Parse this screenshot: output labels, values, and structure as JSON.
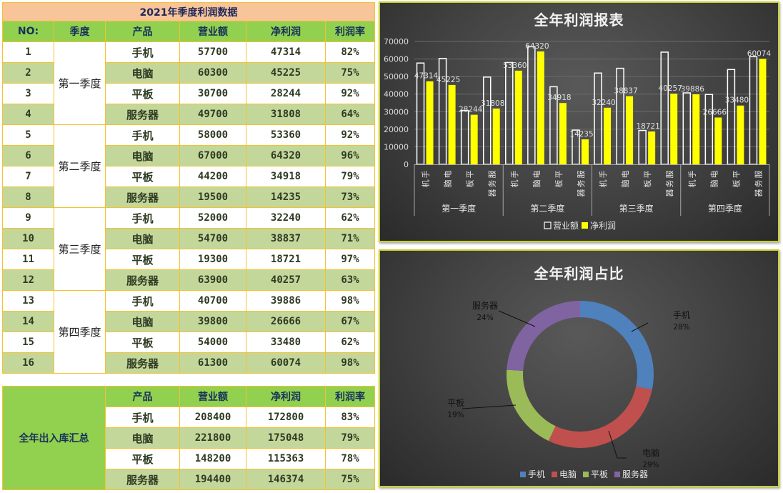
{
  "table": {
    "title": "2021年季度利润数据",
    "headers": [
      "NO:",
      "季度",
      "产品",
      "营业额",
      "净利润",
      "利润率"
    ],
    "quarters": [
      "第一季度",
      "第二季度",
      "第三季度",
      "第四季度"
    ],
    "rows": [
      {
        "no": "1",
        "product": "手机",
        "revenue": "57700",
        "profit": "47314",
        "rate": "82%"
      },
      {
        "no": "2",
        "product": "电脑",
        "revenue": "60300",
        "profit": "45225",
        "rate": "75%"
      },
      {
        "no": "3",
        "product": "平板",
        "revenue": "30700",
        "profit": "28244",
        "rate": "92%"
      },
      {
        "no": "4",
        "product": "服务器",
        "revenue": "49700",
        "profit": "31808",
        "rate": "64%"
      },
      {
        "no": "5",
        "product": "手机",
        "revenue": "58000",
        "profit": "53360",
        "rate": "92%"
      },
      {
        "no": "6",
        "product": "电脑",
        "revenue": "67000",
        "profit": "64320",
        "rate": "96%"
      },
      {
        "no": "7",
        "product": "平板",
        "revenue": "44200",
        "profit": "34918",
        "rate": "79%"
      },
      {
        "no": "8",
        "product": "服务器",
        "revenue": "19500",
        "profit": "14235",
        "rate": "73%"
      },
      {
        "no": "9",
        "product": "手机",
        "revenue": "52000",
        "profit": "32240",
        "rate": "62%"
      },
      {
        "no": "10",
        "product": "电脑",
        "revenue": "54700",
        "profit": "38837",
        "rate": "71%"
      },
      {
        "no": "11",
        "product": "平板",
        "revenue": "19300",
        "profit": "18721",
        "rate": "97%"
      },
      {
        "no": "12",
        "product": "服务器",
        "revenue": "63900",
        "profit": "40257",
        "rate": "63%"
      },
      {
        "no": "13",
        "product": "手机",
        "revenue": "40700",
        "profit": "39886",
        "rate": "98%"
      },
      {
        "no": "14",
        "product": "电脑",
        "revenue": "39800",
        "profit": "26666",
        "rate": "67%"
      },
      {
        "no": "15",
        "product": "平板",
        "revenue": "54000",
        "profit": "33480",
        "rate": "62%"
      },
      {
        "no": "16",
        "product": "服务器",
        "revenue": "61300",
        "profit": "60074",
        "rate": "98%"
      }
    ]
  },
  "summary": {
    "label": "全年出入库汇总",
    "headers": [
      "产品",
      "营业额",
      "净利润",
      "利润率"
    ],
    "rows": [
      {
        "product": "手机",
        "revenue": "208400",
        "profit": "172800",
        "rate": "83%"
      },
      {
        "product": "电脑",
        "revenue": "221800",
        "profit": "175048",
        "rate": "79%"
      },
      {
        "product": "平板",
        "revenue": "148200",
        "profit": "115363",
        "rate": "78%"
      },
      {
        "product": "服务器",
        "revenue": "194400",
        "profit": "146374",
        "rate": "75%"
      }
    ]
  },
  "colors": {
    "title_bg": "#f8c49a",
    "header_bg": "#92d050",
    "row_alt_bg": "#c4d79b",
    "border": "#f2c230",
    "bar_revenue_stroke": "#ffffff",
    "bar_profit_fill": "#ffff00",
    "pie": [
      "#4f81bd",
      "#c0504d",
      "#9bbb59",
      "#8064a2"
    ]
  },
  "chart_data": [
    {
      "type": "bar",
      "title": "全年利润报表",
      "categories": [
        "手机",
        "电脑",
        "平板",
        "服务器",
        "手机",
        "电脑",
        "平板",
        "服务器",
        "手机",
        "电脑",
        "平板",
        "服务器",
        "手机",
        "电脑",
        "平板",
        "服务器"
      ],
      "groups": [
        "第一季度",
        "第二季度",
        "第三季度",
        "第四季度"
      ],
      "series": [
        {
          "name": "营业额",
          "values": [
            57700,
            60300,
            30700,
            49700,
            58000,
            67000,
            44200,
            19500,
            52000,
            54700,
            19300,
            63900,
            40700,
            39800,
            54000,
            61300
          ]
        },
        {
          "name": "净利润",
          "values": [
            47314,
            45225,
            28244,
            31808,
            53360,
            64320,
            34918,
            14235,
            32240,
            38837,
            18721,
            40257,
            39886,
            26666,
            33480,
            60074
          ]
        }
      ],
      "data_labels": "净利润",
      "yticks": [
        0,
        10000,
        20000,
        30000,
        40000,
        50000,
        60000,
        70000
      ],
      "ylim": [
        0,
        70000
      ],
      "xlabel": "",
      "ylabel": "",
      "grid": true,
      "legend_position": "bottom"
    },
    {
      "type": "pie",
      "subtype": "doughnut",
      "title": "全年利润占比",
      "categories": [
        "手机",
        "电脑",
        "平板",
        "服务器"
      ],
      "values": [
        172800,
        175048,
        115363,
        146374
      ],
      "percent_labels": [
        "28%",
        "29%",
        "19%",
        "24%"
      ],
      "legend_position": "bottom"
    }
  ]
}
